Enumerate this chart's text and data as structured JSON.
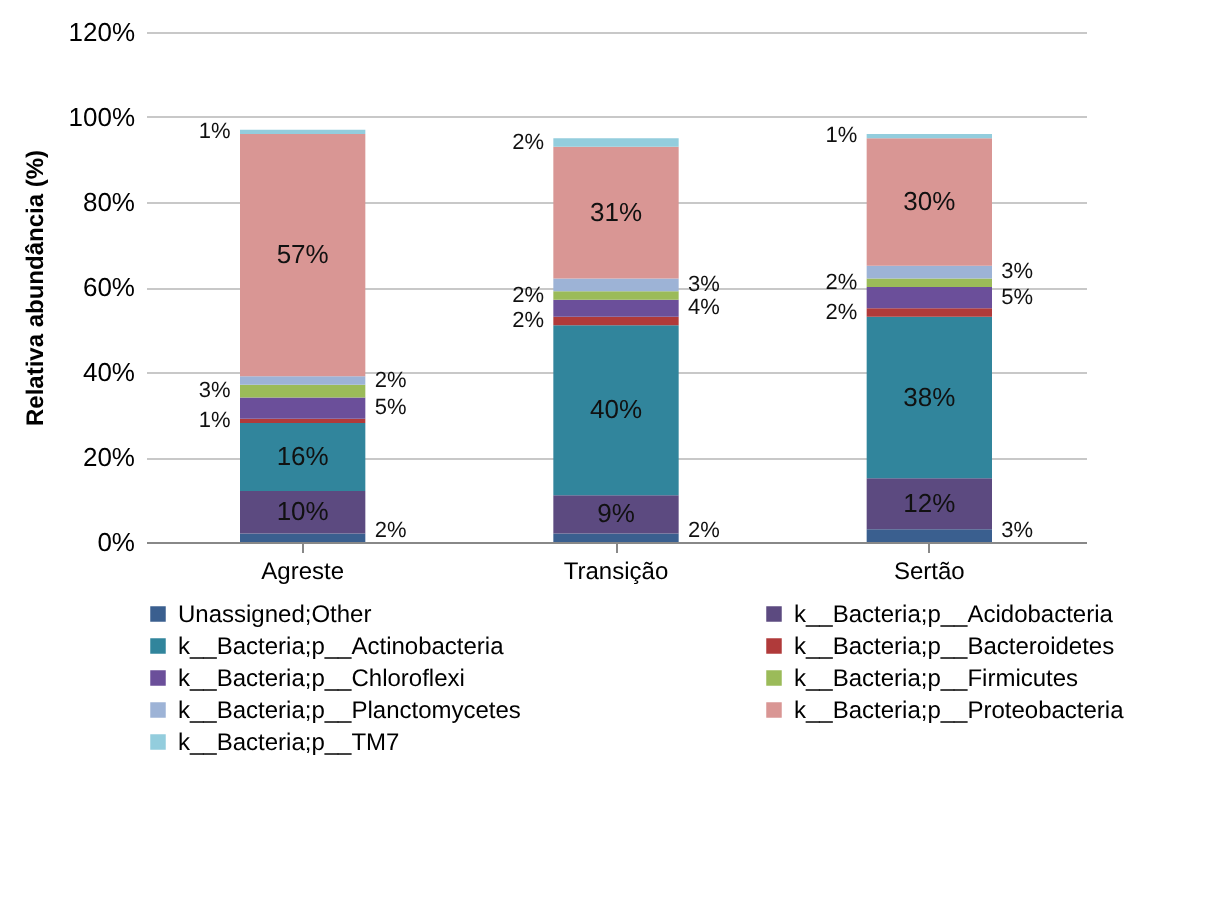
{
  "chart_data": {
    "type": "bar",
    "stacked": true,
    "ylabel": "Relativa abundância (%)",
    "categories": [
      "Agreste",
      "Transição",
      "Sertão"
    ],
    "series": [
      {
        "name": "Unassigned;Other",
        "color": "#3a5f8f",
        "values": [
          2,
          2,
          3
        ]
      },
      {
        "name": "k__Bacteria;p__Acidobacteria",
        "color": "#5c4a80",
        "values": [
          10,
          9,
          12
        ]
      },
      {
        "name": "k__Bacteria;p__Actinobacteria",
        "color": "#31859c",
        "values": [
          16,
          40,
          38
        ]
      },
      {
        "name": "k__Bacteria;p__Bacteroidetes",
        "color": "#b03a3a",
        "values": [
          1,
          2,
          2
        ]
      },
      {
        "name": "k__Bacteria;p__Chloroflexi",
        "color": "#6b4f9a",
        "values": [
          5,
          4,
          5
        ]
      },
      {
        "name": "k__Bacteria;p__Firmicutes",
        "color": "#9bbb59",
        "values": [
          3,
          2,
          2
        ]
      },
      {
        "name": "k__Bacteria;p__Planctomycetes",
        "color": "#9db3d6",
        "values": [
          2,
          3,
          3
        ]
      },
      {
        "name": "k__Bacteria;p__Proteobacteria",
        "color": "#d99694",
        "values": [
          57,
          31,
          30
        ]
      },
      {
        "name": "k__Bacteria;p__TM7",
        "color": "#93cddd",
        "values": [
          1,
          2,
          1
        ]
      }
    ],
    "ylim": [
      0,
      120
    ],
    "yticks": [
      {
        "value": 0,
        "label": "0%"
      },
      {
        "value": 20,
        "label": "20%"
      },
      {
        "value": 40,
        "label": "40%"
      },
      {
        "value": 60,
        "label": "60%"
      },
      {
        "value": 80,
        "label": "80%"
      },
      {
        "value": 100,
        "label": "100%"
      },
      {
        "value": 120,
        "label": "120%"
      }
    ],
    "value_labels": [
      [
        "2%",
        "2%",
        "3%"
      ],
      [
        "10%",
        "9%",
        "12%"
      ],
      [
        "16%",
        "40%",
        "38%"
      ],
      [
        "1%",
        "2%",
        "2%"
      ],
      [
        "5%",
        "4%",
        "5%"
      ],
      [
        "3%",
        "2%",
        "2%"
      ],
      [
        "2%",
        "3%",
        "3%"
      ],
      [
        "57%",
        "31%",
        "30%"
      ],
      [
        "1%",
        "2%",
        "1%"
      ]
    ],
    "grid": "y",
    "legend": "bottom"
  }
}
